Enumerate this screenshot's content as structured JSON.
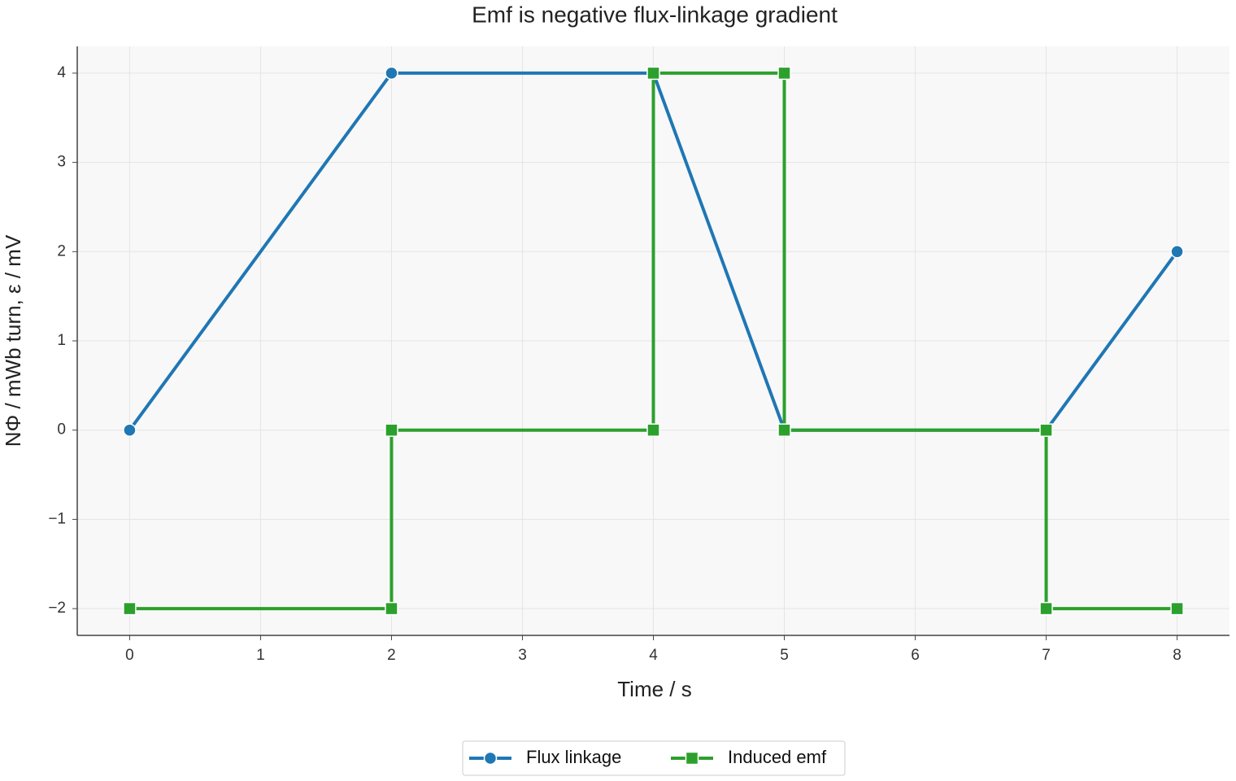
{
  "chart_data": {
    "type": "line",
    "title": "Emf is negative flux-linkage gradient",
    "x_label": "Time / s",
    "y_label": "NΦ / mWb turn, ε / mV",
    "series": [
      {
        "name": "Flux linkage",
        "color": "#1f77b4",
        "marker": "circle",
        "x": [
          0,
          2,
          4,
          5,
          7,
          8
        ],
        "values": [
          0,
          4,
          4,
          0,
          0,
          2
        ]
      },
      {
        "name": "Induced emf",
        "color": "#2ca02c",
        "marker": "square",
        "x": [
          0,
          2,
          2,
          4,
          4,
          5,
          5,
          7,
          7,
          8
        ],
        "values": [
          -2,
          -2,
          0,
          0,
          4,
          4,
          0,
          0,
          -2,
          -2
        ]
      }
    ],
    "xlim": [
      -0.4,
      8.4
    ],
    "xticks": [
      0,
      1,
      2,
      3,
      4,
      5,
      6,
      7,
      8
    ],
    "ylim": [
      -2.3,
      4.3
    ],
    "yticks": [
      {
        "value": -2,
        "label": "−2"
      },
      {
        "value": -1,
        "label": "−1"
      },
      0,
      1,
      2,
      3,
      4
    ],
    "grid": true,
    "legend": "bottom"
  }
}
